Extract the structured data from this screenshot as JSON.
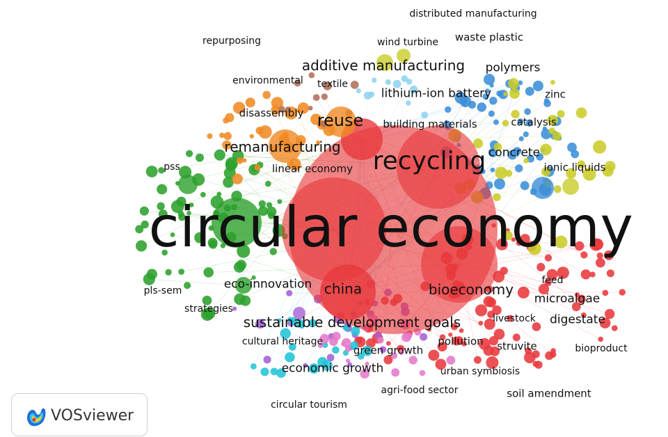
{
  "app": {
    "brand": "VOSviewer"
  },
  "clusters": [
    {
      "id": "red",
      "color": "#e8393c"
    },
    {
      "id": "green",
      "color": "#2ca02c"
    },
    {
      "id": "blue",
      "color": "#3b8ed8"
    },
    {
      "id": "yellow",
      "color": "#c9cc29"
    },
    {
      "id": "purple",
      "color": "#a65fd6"
    },
    {
      "id": "cyan",
      "color": "#22c4d6"
    },
    {
      "id": "orange",
      "color": "#f08a24"
    },
    {
      "id": "brown",
      "color": "#b0705a"
    },
    {
      "id": "pink",
      "color": "#e57ac9"
    },
    {
      "id": "sky",
      "color": "#8fd3f0"
    }
  ],
  "labels": {
    "circular_economy": "circular economy",
    "recycling": "recycling",
    "reuse": "reuse",
    "remanufacturing": "remanufacturing",
    "linear_economy": "linear economy",
    "additive_manufacturing": "additive manufacturing",
    "distributed_manufacturing": "distributed manufacturing",
    "waste_plastic": "waste plastic",
    "wind_turbine": "wind turbine",
    "repurposing": "repurposing",
    "polymers": "polymers",
    "environmental": "environmental",
    "textile": "textile",
    "lithium_ion_battery": "lithium-ion battery",
    "zinc": "zinc",
    "disassembly": "disassembly",
    "building_materials": "building materials",
    "catalysis": "catalysis",
    "concrete": "concrete",
    "pss": "pss",
    "ionic_liquids": "ionic liquids",
    "eco_innovation": "eco-innovation",
    "china": "china",
    "bioeconomy": "bioeconomy",
    "feed": "feed",
    "pls_sem": "pls-sem",
    "microalgae": "microalgae",
    "strategies": "strategies",
    "sustainable_development_goals": "sustainable development goals",
    "livestock": "livestock",
    "digestate": "digestate",
    "cultural_heritage": "cultural heritage",
    "pollution": "pollution",
    "green_growth": "green growth",
    "struvite": "struvite",
    "bioproduct": "bioproduct",
    "economic_growth": "economic growth",
    "urban_symbiosis": "urban symbiosis",
    "agri_food_sector": "agri-food sector",
    "soil_amendment": "soil amendment",
    "circular_tourism": "circular tourism"
  }
}
